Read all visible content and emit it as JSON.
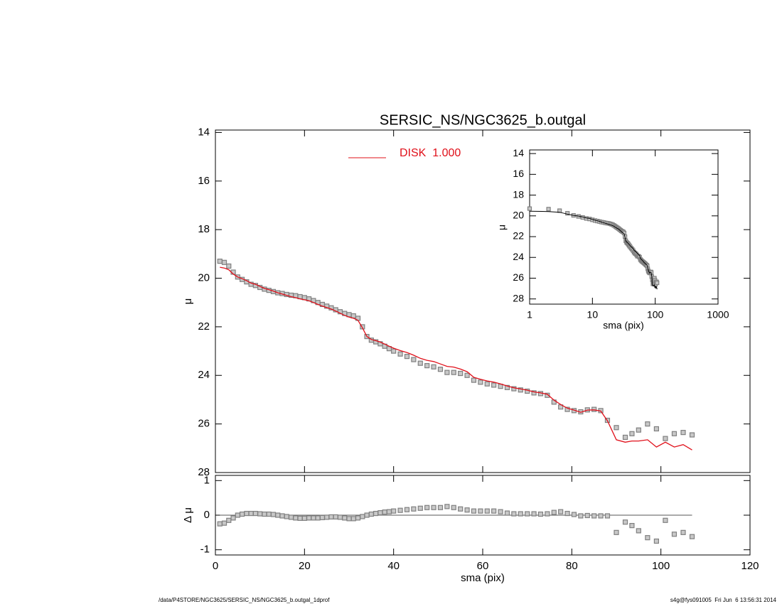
{
  "chart_data": [
    {
      "type": "scatter",
      "title": "SERSIC_NS/NGC3625_b.outgal",
      "ylabel": "μ",
      "xlim": [
        0,
        120
      ],
      "xticks": [
        0,
        20,
        40,
        60,
        80,
        100,
        120
      ],
      "xtick_labels": false,
      "ylim": [
        13.9,
        28
      ],
      "yticks": [
        14,
        16,
        18,
        20,
        22,
        24,
        26,
        28
      ],
      "y_inverted": true,
      "x": [
        1,
        2,
        3,
        4,
        5,
        6,
        7,
        8,
        9,
        10,
        11,
        12,
        13,
        14,
        15,
        16,
        17,
        18,
        19,
        20,
        21,
        22,
        23,
        24,
        25,
        26,
        27,
        28,
        29,
        30,
        31,
        32,
        33,
        34,
        35,
        36,
        37,
        38,
        39,
        40,
        41.5,
        43,
        44.5,
        46,
        47.5,
        49,
        50.5,
        52,
        53.5,
        55,
        56.5,
        58,
        59.5,
        61,
        62.5,
        64,
        65.5,
        67,
        68.5,
        70,
        71.5,
        73,
        74.5,
        76,
        77.5,
        79,
        80.5,
        82,
        83.5,
        85,
        86.5,
        88,
        90,
        92,
        93.5,
        95,
        97,
        99,
        101,
        103,
        105,
        107
      ],
      "series": [
        {
          "color": "#808080",
          "mode": "markers",
          "values": [
            19.3,
            19.35,
            19.5,
            19.75,
            19.95,
            20.05,
            20.15,
            20.25,
            20.3,
            20.38,
            20.45,
            20.5,
            20.55,
            20.6,
            20.63,
            20.67,
            20.7,
            20.72,
            20.76,
            20.8,
            20.85,
            20.92,
            21.0,
            21.08,
            21.15,
            21.22,
            21.3,
            21.38,
            21.45,
            21.5,
            21.55,
            21.65,
            22.0,
            22.4,
            22.55,
            22.62,
            22.7,
            22.8,
            22.9,
            23.0,
            23.12,
            23.22,
            23.35,
            23.5,
            23.6,
            23.65,
            23.75,
            23.88,
            23.88,
            23.92,
            24.0,
            24.2,
            24.28,
            24.35,
            24.4,
            24.45,
            24.5,
            24.55,
            24.6,
            24.65,
            24.72,
            24.75,
            24.82,
            25.1,
            25.3,
            25.4,
            25.45,
            25.5,
            25.42,
            25.4,
            25.45,
            25.85,
            26.15,
            26.55,
            26.4,
            26.25,
            26.0,
            26.2,
            26.6,
            26.4,
            26.35,
            26.45
          ]
        },
        {
          "name": "DISK  1.000",
          "color": "#e0101a",
          "mode": "line",
          "values": [
            19.55,
            19.58,
            19.65,
            19.83,
            19.95,
            20.02,
            20.1,
            20.2,
            20.25,
            20.34,
            20.42,
            20.47,
            20.53,
            20.6,
            20.65,
            20.71,
            20.76,
            20.8,
            20.85,
            20.89,
            20.93,
            21.0,
            21.08,
            21.15,
            21.21,
            21.27,
            21.35,
            21.44,
            21.53,
            21.6,
            21.65,
            21.73,
            22.04,
            22.4,
            22.52,
            22.57,
            22.63,
            22.71,
            22.8,
            22.88,
            22.98,
            23.06,
            23.17,
            23.3,
            23.38,
            23.43,
            23.53,
            23.63,
            23.66,
            23.74,
            23.85,
            24.08,
            24.16,
            24.23,
            24.28,
            24.35,
            24.44,
            24.51,
            24.56,
            24.61,
            24.68,
            24.72,
            24.78,
            25.02,
            25.2,
            25.35,
            25.43,
            25.52,
            25.43,
            25.42,
            25.47,
            25.87,
            26.65,
            26.75,
            26.7,
            26.7,
            26.65,
            26.95,
            26.75,
            26.95,
            26.85,
            27.07
          ]
        }
      ]
    },
    {
      "type": "scatter",
      "xlabel": "sma (pix)",
      "ylabel": "Δ μ",
      "xlim": [
        0,
        120
      ],
      "xticks": [
        0,
        20,
        40,
        60,
        80,
        100,
        120
      ],
      "ylim": [
        -1.15,
        1.15
      ],
      "yticks": [
        1,
        0,
        -1
      ],
      "hline": 0,
      "series": [
        {
          "color": "#808080",
          "mode": "markers",
          "values": [
            -0.25,
            -0.23,
            -0.15,
            -0.08,
            0,
            0.03,
            0.05,
            0.05,
            0.05,
            0.04,
            0.03,
            0.03,
            0.02,
            0.0,
            -0.02,
            -0.04,
            -0.06,
            -0.08,
            -0.09,
            -0.09,
            -0.08,
            -0.08,
            -0.08,
            -0.07,
            -0.06,
            -0.05,
            -0.05,
            -0.06,
            -0.08,
            -0.1,
            -0.1,
            -0.08,
            -0.04,
            0.0,
            0.03,
            0.05,
            0.07,
            0.09,
            0.1,
            0.12,
            0.14,
            0.16,
            0.18,
            0.2,
            0.22,
            0.22,
            0.22,
            0.25,
            0.22,
            0.18,
            0.15,
            0.12,
            0.12,
            0.12,
            0.12,
            0.1,
            0.06,
            0.04,
            0.04,
            0.04,
            0.04,
            0.03,
            0.04,
            0.08,
            0.1,
            0.05,
            0.02,
            -0.02,
            -0.01,
            -0.02,
            -0.02,
            -0.02,
            -0.5,
            -0.2,
            -0.3,
            -0.45,
            -0.65,
            -0.75,
            -0.15,
            -0.55,
            -0.5,
            -0.62
          ]
        }
      ]
    },
    {
      "type": "scatter",
      "xlabel": "sma (pix)",
      "ylabel": "μ",
      "log_x": true,
      "xlim": [
        1,
        1000
      ],
      "xticks": [
        1,
        10,
        100,
        1000
      ],
      "ylim": [
        13.65,
        28.5
      ],
      "yticks": [
        14,
        16,
        18,
        20,
        22,
        24,
        26,
        28
      ],
      "y_inverted": true
    }
  ],
  "footer": {
    "left": "/data/P4STORE/NGC3625/SERSIC_NS/NGC3625_b.outgal_1dprof",
    "right": "s4g@fys091005  Fri Jun  6 13:56:31 2014"
  }
}
